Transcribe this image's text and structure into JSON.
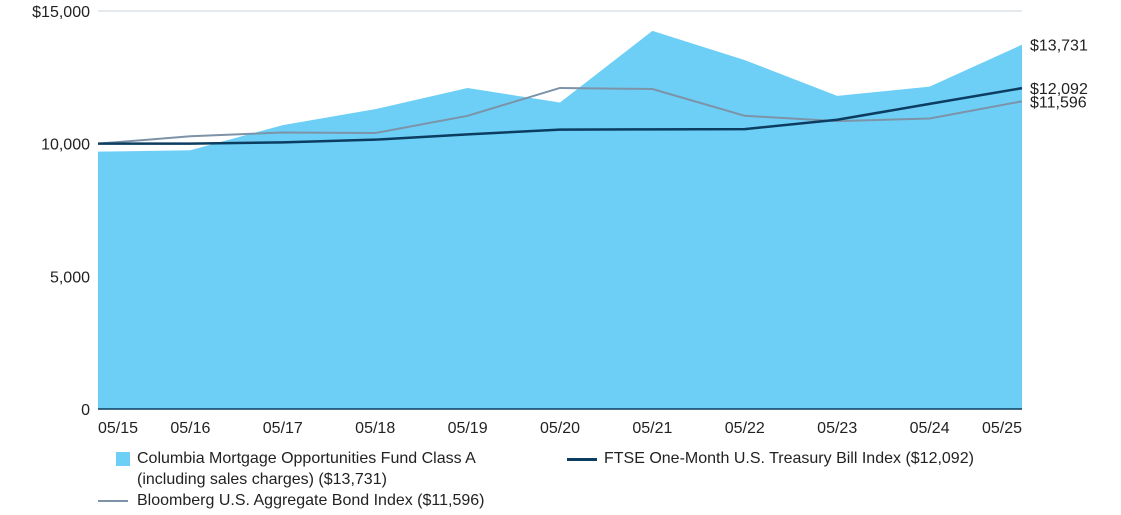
{
  "chart_data": {
    "type": "area",
    "x": [
      "05/15",
      "05/16",
      "05/17",
      "05/18",
      "05/19",
      "05/20",
      "05/21",
      "05/22",
      "05/23",
      "05/24",
      "05/25"
    ],
    "ylim": [
      0,
      15000
    ],
    "y_ticks": [
      "0",
      "5,000",
      "10,000",
      "$15,000"
    ],
    "y_tick_values": [
      0,
      5000,
      10000,
      15000
    ],
    "grid": "horizontal",
    "legend_position": "bottom",
    "series": [
      {
        "name_line1": "Columbia Mortgage Opportunities Fund Class A",
        "name_line2": "(including sales charges) ($13,731)",
        "style": "area",
        "color": "#6dcff6",
        "end_label": "$13,731",
        "values": [
          9700,
          9750,
          10700,
          11300,
          12100,
          11550,
          14250,
          13150,
          11800,
          12150,
          13731
        ]
      },
      {
        "name": "FTSE One-Month U.S. Treasury Bill Index ($12,092)",
        "style": "line",
        "color": "#0c3c60",
        "end_label": "$12,092",
        "values": [
          10000,
          10000,
          10050,
          10150,
          10350,
          10530,
          10540,
          10550,
          10900,
          11500,
          12092
        ]
      },
      {
        "name": "Bloomberg U.S. Aggregate Bond Index ($11,596)",
        "style": "line",
        "color": "#7c93a8",
        "end_label": "$11,596",
        "values": [
          10000,
          10280,
          10420,
          10400,
          11050,
          12100,
          12060,
          11050,
          10850,
          10950,
          11596
        ]
      }
    ]
  }
}
